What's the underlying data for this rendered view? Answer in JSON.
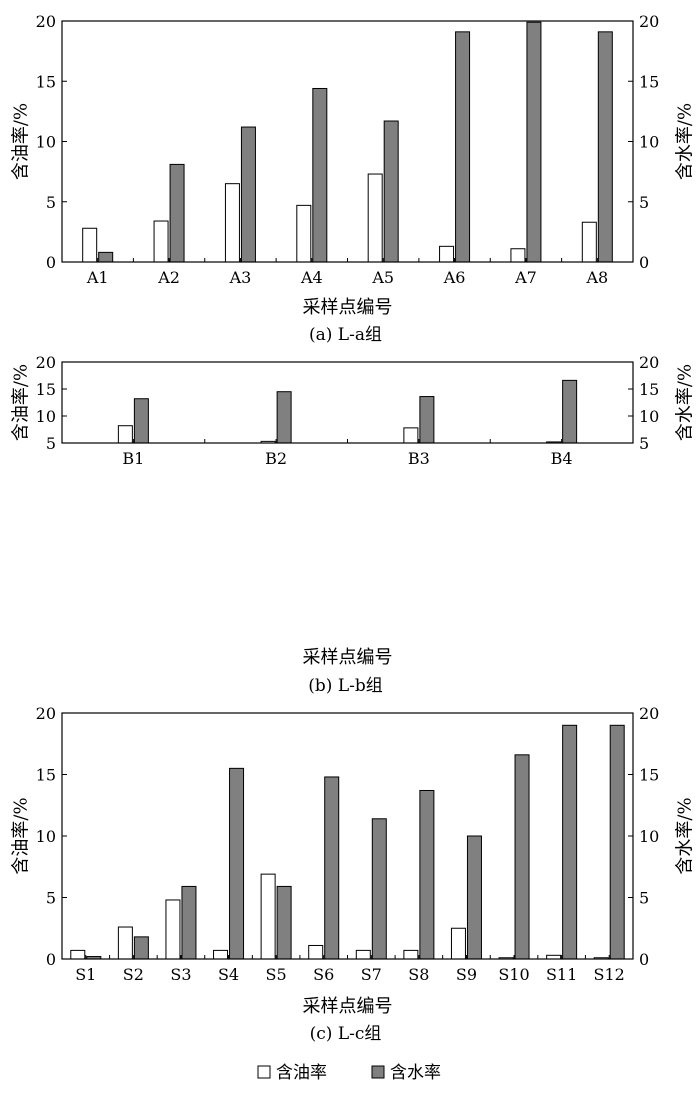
{
  "chart_data": [
    {
      "type": "bar",
      "caption": "(a)  L-a组",
      "xlabel": "采样点编号",
      "ylabel_left": "含油率/%",
      "ylabel_right": "含水率/%",
      "ylim": [
        0,
        20
      ],
      "yticks": [
        0,
        5,
        10,
        15,
        20
      ],
      "categories": [
        "A1",
        "A2",
        "A3",
        "A4",
        "A5",
        "A6",
        "A7",
        "A8"
      ],
      "series": [
        {
          "name": "含油率",
          "color": "#ffffff",
          "values": [
            2.8,
            3.4,
            6.5,
            4.7,
            7.3,
            1.3,
            1.1,
            3.3
          ]
        },
        {
          "name": "含水率",
          "color": "#808080",
          "values": [
            0.8,
            8.1,
            11.2,
            14.4,
            11.7,
            19.1,
            19.9,
            19.1
          ]
        }
      ]
    },
    {
      "type": "bar",
      "caption": "(b)  L-b组",
      "xlabel": "采样点编号",
      "ylabel_left": "含油率/%",
      "ylabel_right": "含水率/%",
      "ylim": [
        5,
        20
      ],
      "yticks": [
        5,
        10,
        15,
        20
      ],
      "categories": [
        "B1",
        "B2",
        "B3",
        "B4"
      ],
      "series": [
        {
          "name": "含油率",
          "color": "#ffffff",
          "values": [
            8.2,
            5.3,
            7.8,
            5.2
          ]
        },
        {
          "name": "含水率",
          "color": "#808080",
          "values": [
            13.2,
            14.5,
            13.6,
            16.6
          ]
        }
      ]
    },
    {
      "type": "bar",
      "caption": "(c)  L-c组",
      "xlabel": "采样点编号",
      "ylabel_left": "含油率/%",
      "ylabel_right": "含水率/%",
      "ylim": [
        0,
        20
      ],
      "yticks": [
        0,
        5,
        10,
        15,
        20
      ],
      "categories": [
        "S1",
        "S2",
        "S3",
        "S4",
        "S5",
        "S6",
        "S7",
        "S8",
        "S9",
        "S10",
        "S11",
        "S12"
      ],
      "series": [
        {
          "name": "含油率",
          "color": "#ffffff",
          "values": [
            0.7,
            2.6,
            4.8,
            0.7,
            6.9,
            1.1,
            0.7,
            0.7,
            2.5,
            0.1,
            0.3,
            0.1
          ]
        },
        {
          "name": "含水率",
          "color": "#808080",
          "values": [
            0.2,
            1.8,
            5.9,
            15.5,
            5.9,
            14.8,
            11.4,
            13.7,
            10.0,
            16.6,
            19.0,
            19.0
          ]
        }
      ]
    }
  ],
  "legend": {
    "items": [
      {
        "label": "含油率",
        "color": "#ffffff"
      },
      {
        "label": "含水率",
        "color": "#808080"
      }
    ],
    "placement": "bottom-center"
  }
}
